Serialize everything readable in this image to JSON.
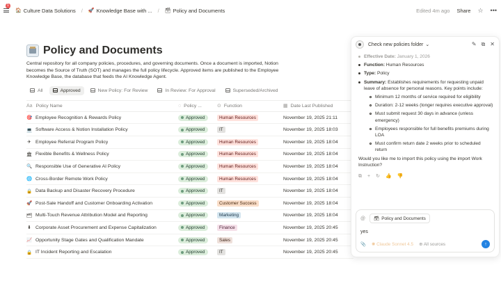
{
  "topbar": {
    "notification_count": "1",
    "breadcrumbs": [
      {
        "icon": "🏠",
        "label": "Culture Data Solutions"
      },
      {
        "icon": "🚀",
        "label": "Knowledge Base with ..."
      },
      {
        "icon": "🗃",
        "label": "Policy and Documents"
      }
    ],
    "edited": "Edited 4m ago",
    "share_label": "Share"
  },
  "page": {
    "title": "Policy and Documents",
    "description": "Central repository for all company policies, procedures, and governing documents. Once a document is imported, Notion becomes the Source of Truth (SOT) and manages the full policy lifecycle.  Approved items are published to the Employee Knowledge Base, the database that feeds the AI Knowledge Agent."
  },
  "views": [
    {
      "label": "All",
      "active": false
    },
    {
      "label": "Approved",
      "active": true
    },
    {
      "label": "New Policy: For Review",
      "active": false
    },
    {
      "label": "In Review: For Approval",
      "active": false
    },
    {
      "label": "Superseded/Archived",
      "active": false
    }
  ],
  "table": {
    "columns": [
      "Policy Name",
      "Policy ...",
      "Function",
      "Date Last Published"
    ],
    "rows": [
      {
        "icon": "🎯",
        "name": "Employee Recognition & Rewards Policy",
        "status": "Approved",
        "function": "Human Resources",
        "fn_bg": "#ffe2dd",
        "fn_fg": "#5d1715",
        "date": "November 19, 2025 21:11"
      },
      {
        "icon": "💻",
        "name": "Software Access & Notion Installation Policy",
        "status": "Approved",
        "function": "IT",
        "fn_bg": "#e3e2e0",
        "fn_fg": "#32302c",
        "date": "November 19, 2025 18:03"
      },
      {
        "icon": "✈",
        "name": "Employee Referral Program Policy",
        "status": "Approved",
        "function": "Human Resources",
        "fn_bg": "#ffe2dd",
        "fn_fg": "#5d1715",
        "date": "November 19, 2025 18:04"
      },
      {
        "icon": "🏛",
        "name": "Flexible Benefits & Wellness Policy",
        "status": "Approved",
        "function": "Human Resources",
        "fn_bg": "#ffe2dd",
        "fn_fg": "#5d1715",
        "date": "November 19, 2025 18:04"
      },
      {
        "icon": "🔍",
        "name": "Responsible Use of Generative AI Policy",
        "status": "Approved",
        "function": "Human Resources",
        "fn_bg": "#ffe2dd",
        "fn_fg": "#5d1715",
        "date": "November 19, 2025 18:04"
      },
      {
        "icon": "🌐",
        "name": "Cross-Border Remote Work Policy",
        "status": "Approved",
        "function": "Human Resources",
        "fn_bg": "#ffe2dd",
        "fn_fg": "#5d1715",
        "date": "November 19, 2025 18:04"
      },
      {
        "icon": "🔒",
        "name": "Data Backup and Disaster Recovery Procedure",
        "status": "Approved",
        "function": "IT",
        "fn_bg": "#e3e2e0",
        "fn_fg": "#32302c",
        "date": "November 19, 2025 18:04"
      },
      {
        "icon": "🚀",
        "name": "Post-Sale Handoff and Customer Onboarding Activation",
        "status": "Approved",
        "function": "Customer Success",
        "fn_bg": "#fadec9",
        "fn_fg": "#49290e",
        "date": "November 19, 2025 18:04"
      },
      {
        "icon": "🗂",
        "name": "Multi-Touch Revenue Attribution Model and Reporting",
        "status": "Approved",
        "function": "Marketing",
        "fn_bg": "#d3e5ef",
        "fn_fg": "#183347",
        "date": "November 19, 2025 18:04"
      },
      {
        "icon": "⬇",
        "name": "Corporate Asset Procurement and Expense Capitalization",
        "status": "Approved",
        "function": "Finance",
        "fn_bg": "#f5e0e9",
        "fn_fg": "#4c2337",
        "date": "November 19, 2025 20:45"
      },
      {
        "icon": "📈",
        "name": "Opportunity Stage Gates and Qualification Mandate",
        "status": "Approved",
        "function": "Sales",
        "fn_bg": "#eee0da",
        "fn_fg": "#44291c",
        "date": "November 19, 2025 20:45"
      },
      {
        "icon": "🔒",
        "name": "IT Incident Reporting and Escalation",
        "status": "Approved",
        "function": "IT",
        "fn_bg": "#e3e2e0",
        "fn_fg": "#32302c",
        "date": "November 19, 2025 20:45"
      }
    ]
  },
  "ai_panel": {
    "title": "Check new policies folder",
    "effective_label": "Effective Date:",
    "effective_value": "January 1, 2026",
    "function_label": "Function:",
    "function_value": "Human Resources",
    "type_label": "Type:",
    "type_value": "Policy",
    "summary_label": "Summary:",
    "summary_value": "Establishes requirements for requesting unpaid leave of absence for personal reasons. Key points include:",
    "key_points": [
      "Minimum 12 months of service required for eligibility",
      "Duration: 2-12 weeks (longer requires executive approval)",
      "Must submit request 30 days in advance (unless emergency)",
      "Employees responsible for full benefits premiums during LOA",
      "Must confirm return date 2 weeks prior to scheduled return"
    ],
    "question": "Would you like me to import this policy using the import Work Instruction?",
    "context_chip": "Policy and Documents",
    "input_text": "yes",
    "model_label": "Claude Sonnet 4.5",
    "sources_label": "All sources"
  }
}
